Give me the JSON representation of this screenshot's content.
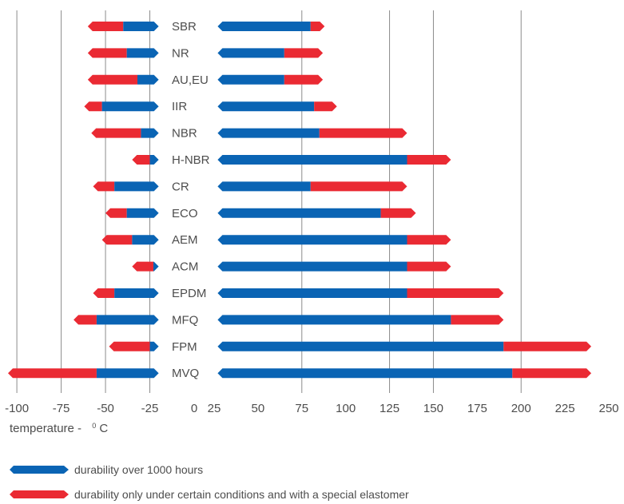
{
  "chart_data": {
    "type": "bar",
    "subtype": "floating-range",
    "xlabel": "temperature -",
    "xlabel_unit_sup": "0",
    "xlabel_unit": "C",
    "grid": "vertical",
    "colors": {
      "durable": "#0a64b4",
      "special": "#ea2a33",
      "grid": "#8c8c8c",
      "text": "#4d4d4d"
    },
    "low_panel": {
      "xlim": [
        -105,
        0
      ],
      "ticks": [
        "-100",
        "-75",
        "-50",
        "-25",
        "0"
      ],
      "tick_values": [
        -100,
        -75,
        -50,
        -25,
        0
      ],
      "grid_values": [
        -100,
        -75,
        -50,
        -25
      ]
    },
    "high_panel": {
      "xlim": [
        25,
        250
      ],
      "ticks": [
        "25",
        "50",
        "75",
        "100",
        "125",
        "150",
        "175",
        "200",
        "225",
        "250"
      ],
      "tick_values": [
        25,
        50,
        75,
        100,
        125,
        150,
        175,
        200,
        225,
        250
      ],
      "grid_values": [
        75,
        125,
        150,
        200
      ]
    },
    "rows": [
      {
        "name": "SBR",
        "low_special": [
          -60,
          -40
        ],
        "low_durable": [
          -40,
          -20
        ],
        "high_durable": [
          27,
          80
        ],
        "high_special": [
          80,
          88
        ]
      },
      {
        "name": "NR",
        "low_special": [
          -60,
          -38
        ],
        "low_durable": [
          -38,
          -20
        ],
        "high_durable": [
          27,
          65
        ],
        "high_special": [
          65,
          87
        ]
      },
      {
        "name": "AU,EU",
        "low_special": [
          -60,
          -32
        ],
        "low_durable": [
          -32,
          -20
        ],
        "high_durable": [
          27,
          65
        ],
        "high_special": [
          65,
          87
        ]
      },
      {
        "name": "IIR",
        "low_special": [
          -62,
          -52
        ],
        "low_durable": [
          -52,
          -20
        ],
        "high_durable": [
          27,
          82
        ],
        "high_special": [
          82,
          95
        ]
      },
      {
        "name": "NBR",
        "low_special": [
          -58,
          -30
        ],
        "low_durable": [
          -30,
          -20
        ],
        "high_durable": [
          27,
          85
        ],
        "high_special": [
          85,
          135
        ]
      },
      {
        "name": "H-NBR",
        "low_special": [
          -35,
          -25
        ],
        "low_durable": [
          -25,
          -20
        ],
        "high_durable": [
          27,
          135
        ],
        "high_special": [
          135,
          160
        ]
      },
      {
        "name": "CR",
        "low_special": [
          -57,
          -45
        ],
        "low_durable": [
          -45,
          -20
        ],
        "high_durable": [
          27,
          80
        ],
        "high_special": [
          80,
          135
        ]
      },
      {
        "name": "ECO",
        "low_special": [
          -50,
          -38
        ],
        "low_durable": [
          -38,
          -20
        ],
        "high_durable": [
          27,
          120
        ],
        "high_special": [
          120,
          140
        ]
      },
      {
        "name": "AEM",
        "low_special": [
          -52,
          -35
        ],
        "low_durable": [
          -35,
          -20
        ],
        "high_durable": [
          27,
          135
        ],
        "high_special": [
          135,
          160
        ]
      },
      {
        "name": "ACM",
        "low_special": [
          -35,
          -23
        ],
        "low_durable": [
          -23,
          -20
        ],
        "high_durable": [
          27,
          135
        ],
        "high_special": [
          135,
          160
        ]
      },
      {
        "name": "EPDM",
        "low_special": [
          -57,
          -45
        ],
        "low_durable": [
          -45,
          -20
        ],
        "high_durable": [
          27,
          135
        ],
        "high_special": [
          135,
          190
        ]
      },
      {
        "name": "MFQ",
        "low_special": [
          -68,
          -55
        ],
        "low_durable": [
          -55,
          -20
        ],
        "high_durable": [
          27,
          160
        ],
        "high_special": [
          160,
          190
        ]
      },
      {
        "name": "FPM",
        "low_special": [
          -48,
          -25
        ],
        "low_durable": [
          -25,
          -20
        ],
        "high_durable": [
          27,
          190
        ],
        "high_special": [
          190,
          240
        ]
      },
      {
        "name": "MVQ",
        "low_special": [
          -105,
          -55
        ],
        "low_durable": [
          -55,
          -20
        ],
        "high_durable": [
          27,
          195
        ],
        "high_special": [
          195,
          240
        ]
      }
    ],
    "legend": [
      {
        "key": "durable",
        "label": "durability over 1000 hours"
      },
      {
        "key": "special",
        "label": "durability only under certain conditions and with a special elastomer"
      }
    ]
  }
}
